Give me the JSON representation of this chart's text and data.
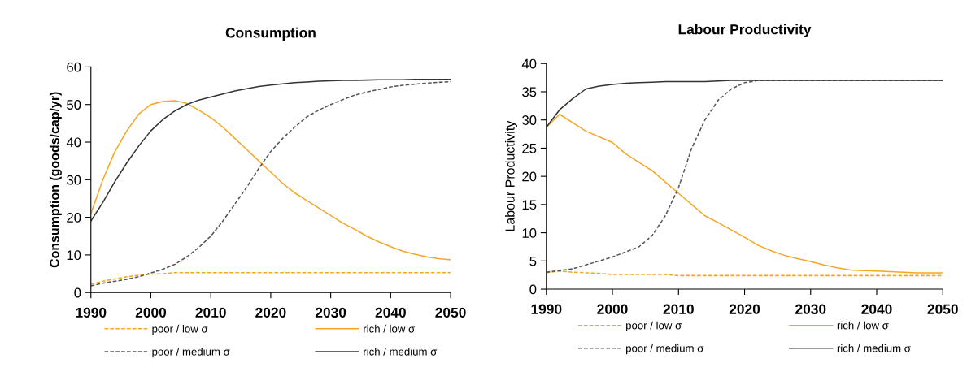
{
  "chart_data": [
    {
      "type": "line",
      "title": "Consumption",
      "ylabel": "Consumption (goods/cap/yr)",
      "xlim": [
        1990,
        2050
      ],
      "xticks": [
        1990,
        2000,
        2010,
        2020,
        2030,
        2040,
        2050
      ],
      "ylim": [
        0,
        60
      ],
      "yticks": [
        0,
        10,
        20,
        30,
        40,
        50,
        60
      ],
      "grid": false,
      "legend": "bottom",
      "marker": "none",
      "x": [
        1990,
        1992,
        1994,
        1996,
        1998,
        2000,
        2002,
        2004,
        2006,
        2008,
        2010,
        2012,
        2014,
        2016,
        2018,
        2020,
        2022,
        2024,
        2026,
        2028,
        2030,
        2032,
        2034,
        2036,
        2038,
        2040,
        2042,
        2044,
        2046,
        2048,
        2050
      ],
      "series": [
        {
          "name": "poor / low σ",
          "color": "#f5a623",
          "line_style": "dashed",
          "values": [
            2.2,
            3,
            3.6,
            4.2,
            4.6,
            4.9,
            5.0,
            5.3,
            5.3,
            5.3,
            5.3,
            5.3,
            5.3,
            5.3,
            5.3,
            5.3,
            5.3,
            5.3,
            5.3,
            5.3,
            5.3,
            5.3,
            5.3,
            5.3,
            5.3,
            5.3,
            5.3,
            5.3,
            5.3,
            5.3,
            5.3
          ]
        },
        {
          "name": "rich / low σ",
          "color": "#f5a623",
          "line_style": "solid",
          "values": [
            21,
            30,
            37.5,
            43,
            47.5,
            50,
            50.8,
            51,
            50.3,
            48.5,
            46.5,
            44,
            41,
            38,
            35,
            32,
            29,
            26.5,
            24.5,
            22.5,
            20.5,
            18.5,
            16.8,
            15,
            13.5,
            12.2,
            11,
            10.2,
            9.5,
            9,
            8.7
          ]
        },
        {
          "name": "poor / medium σ",
          "color": "#555555",
          "line_style": "dashed",
          "values": [
            1.8,
            2.5,
            3,
            3.5,
            4.2,
            5.2,
            6.2,
            7.5,
            9.5,
            12,
            15,
            19,
            23.5,
            28,
            33,
            37.5,
            41,
            44,
            46.7,
            48.5,
            50,
            51.3,
            52.5,
            53.3,
            54,
            54.7,
            55.1,
            55.4,
            55.7,
            55.9,
            56.1
          ]
        },
        {
          "name": "rich / medium σ",
          "color": "#333333",
          "line_style": "solid",
          "values": [
            19,
            24,
            29.5,
            34.5,
            39,
            43,
            46,
            48.3,
            50,
            51.2,
            52,
            52.8,
            53.6,
            54.2,
            54.8,
            55.2,
            55.5,
            55.8,
            56,
            56.2,
            56.3,
            56.4,
            56.4,
            56.5,
            56.6,
            56.6,
            56.6,
            56.7,
            56.7,
            56.7,
            56.7
          ]
        }
      ]
    },
    {
      "type": "line",
      "title": "Labour Productivity",
      "ylabel": "Labour Productivity",
      "xlim": [
        1990,
        2050
      ],
      "xticks": [
        1990,
        2000,
        2010,
        2020,
        2030,
        2040,
        2050
      ],
      "ylim": [
        0,
        40
      ],
      "yticks": [
        0,
        5,
        10,
        15,
        20,
        25,
        30,
        35,
        40
      ],
      "grid": false,
      "legend": "bottom",
      "marker": "none",
      "x": [
        1990,
        1992,
        1994,
        1996,
        1998,
        2000,
        2002,
        2004,
        2006,
        2008,
        2010,
        2012,
        2014,
        2016,
        2018,
        2020,
        2022,
        2024,
        2026,
        2028,
        2030,
        2032,
        2034,
        2036,
        2038,
        2040,
        2042,
        2044,
        2046,
        2048,
        2050
      ],
      "series": [
        {
          "name": "poor / low σ",
          "color": "#f5a623",
          "line_style": "dashed",
          "values": [
            2.9,
            3.2,
            3.0,
            2.9,
            2.8,
            2.6,
            2.6,
            2.6,
            2.6,
            2.6,
            2.4,
            2.4,
            2.4,
            2.4,
            2.4,
            2.4,
            2.4,
            2.4,
            2.4,
            2.4,
            2.4,
            2.4,
            2.4,
            2.4,
            2.4,
            2.4,
            2.4,
            2.4,
            2.4,
            2.4,
            2.4
          ]
        },
        {
          "name": "rich / low σ",
          "color": "#f5a623",
          "line_style": "solid",
          "values": [
            28.7,
            31,
            29.5,
            28,
            27,
            26,
            24,
            22.5,
            21,
            19,
            17,
            15,
            13,
            11.8,
            10.5,
            9.2,
            7.8,
            6.8,
            6,
            5.4,
            4.9,
            4.3,
            3.8,
            3.4,
            3.3,
            3.2,
            3.1,
            3.0,
            2.9,
            2.9,
            2.9
          ]
        },
        {
          "name": "poor / medium σ",
          "color": "#555555",
          "line_style": "dashed",
          "values": [
            3,
            3.3,
            3.6,
            4.3,
            5,
            5.7,
            6.6,
            7.5,
            9.5,
            13,
            18,
            25,
            30,
            33.5,
            35.5,
            36.6,
            37,
            37,
            37,
            37,
            37,
            37,
            37,
            37,
            37,
            37,
            37,
            37,
            37,
            37,
            37
          ]
        },
        {
          "name": "rich / medium σ",
          "color": "#333333",
          "line_style": "solid",
          "values": [
            28.7,
            31.8,
            33.8,
            35.5,
            36,
            36.3,
            36.5,
            36.6,
            36.7,
            36.8,
            36.8,
            36.8,
            36.8,
            36.9,
            37,
            37,
            37,
            37,
            37,
            37,
            37,
            37,
            37,
            37,
            37,
            37,
            37,
            37,
            37,
            37,
            37
          ]
        }
      ]
    }
  ]
}
